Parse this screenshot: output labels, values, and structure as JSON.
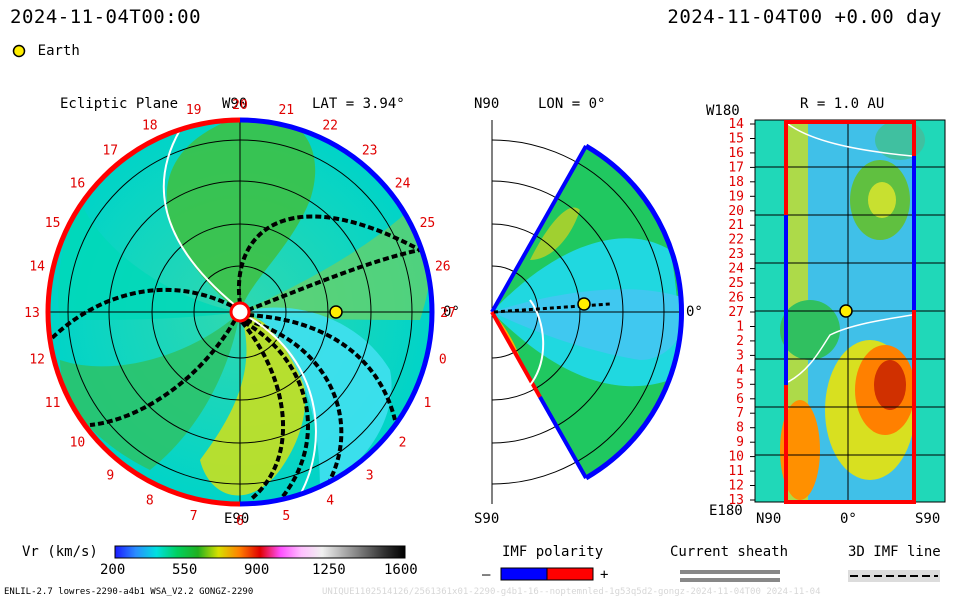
{
  "header": {
    "datetime_left": "2024-11-04T00:00",
    "datetime_right": "2024-11-04T00 +0.00 day"
  },
  "legend": {
    "earth_label": "Earth",
    "earth_color": "#ffee00"
  },
  "panels": {
    "ecliptic": {
      "title": "Ecliptic Plane",
      "top_label": "W90",
      "bottom_label": "E90",
      "right_label": "0°",
      "lat": "LAT = 3.94°",
      "carrington": [
        "20",
        "21",
        "22",
        "23",
        "24",
        "25",
        "26",
        "27",
        "0",
        "1",
        "2",
        "3",
        "4",
        "5",
        "6",
        "7",
        "8",
        "9",
        "10",
        "11",
        "12",
        "13",
        "14",
        "15",
        "16",
        "17",
        "18",
        "19"
      ]
    },
    "meridional": {
      "title": "LON = 0°",
      "top_label": "N90",
      "bottom_label": "S90",
      "right_label": "0°"
    },
    "radial": {
      "title": "R = 1.0 AU",
      "top_left_label": "W180",
      "bottom_left_label": "E180",
      "x_labels": [
        "N90",
        "0°",
        "S90"
      ],
      "y_labels": [
        "14",
        "15",
        "16",
        "17",
        "18",
        "19",
        "20",
        "21",
        "22",
        "23",
        "24",
        "25",
        "26",
        "27",
        "1",
        "2",
        "3",
        "4",
        "5",
        "6",
        "7",
        "8",
        "9",
        "10",
        "11",
        "12",
        "13"
      ]
    }
  },
  "colorbar": {
    "label": "Vr (km/s)",
    "ticks": [
      "200",
      "550",
      "900",
      "1250",
      "1600"
    ],
    "colors": [
      "#1a1aff",
      "#2a8cff",
      "#00e0e0",
      "#00d060",
      "#20b020",
      "#d8e000",
      "#ff8000",
      "#e00000",
      "#ff50ff",
      "#ffc0ff",
      "#f0f0f0",
      "#b0b0b0",
      "#707070",
      "#303030",
      "#000000"
    ]
  },
  "imf": {
    "label": "IMF polarity",
    "minus": "–",
    "plus": "+",
    "neg_color": "#0000ff",
    "pos_color": "#ff0000"
  },
  "sheath": {
    "label": "Current sheath"
  },
  "line3d": {
    "label": "3D IMF line"
  },
  "footer": {
    "model": "ENLIL-2.7 lowres-2290-a4b1 WSA_V2.2 GONGZ-2290",
    "run_id": "UNIQUE1102514126/2561361x01-2290-g4b1-16--noptemnled-1g53q5d2-gongz-2024-11-04T00   2024-11-04"
  },
  "chart_data": [
    {
      "type": "heatmap",
      "view": "ecliptic-plane",
      "quantity": "Vr (km/s)",
      "lat_deg": 3.94,
      "earth_radius_au": 1.0,
      "earth_angle_deg": 0
    },
    {
      "type": "heatmap",
      "view": "meridional-plane",
      "quantity": "Vr (km/s)",
      "lon_deg": 0
    },
    {
      "type": "heatmap",
      "view": "radial-1AU",
      "quantity": "Vr (km/s)",
      "radius_au": 1.0
    }
  ]
}
